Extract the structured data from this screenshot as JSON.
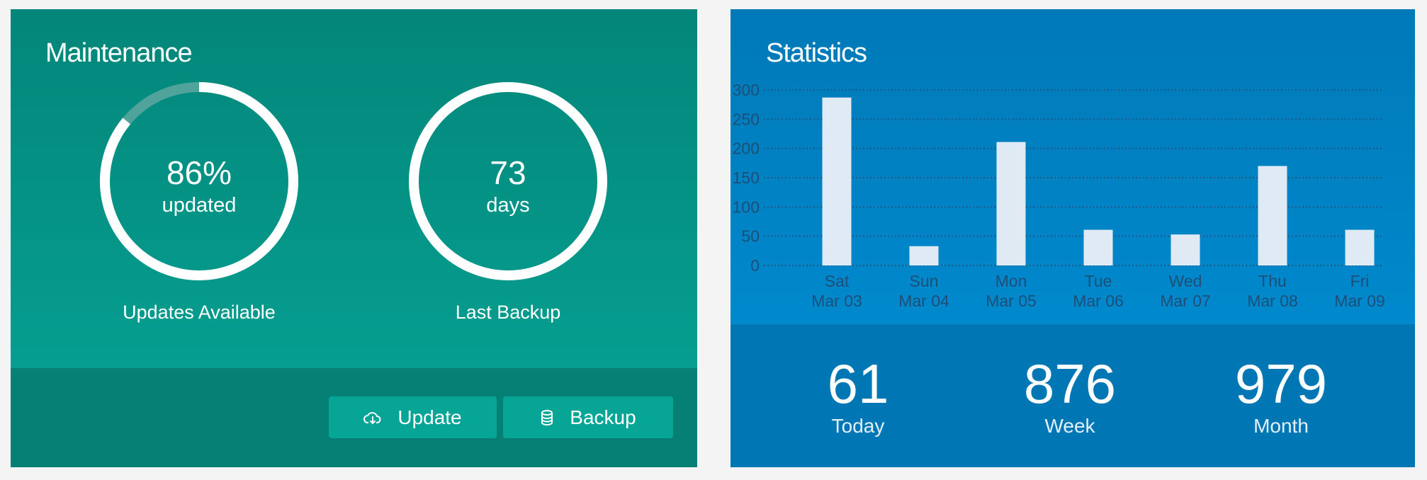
{
  "maintenance": {
    "title": "Maintenance",
    "updates": {
      "value": "86%",
      "unit": "updated",
      "label": "Updates Available",
      "percent": 86
    },
    "backup": {
      "value": "73",
      "unit": "days",
      "label": "Last Backup",
      "percent": 100
    },
    "buttons": [
      {
        "label": "Update",
        "icon": "cloud-download-icon"
      },
      {
        "label": "Backup",
        "icon": "database-icon"
      }
    ],
    "colors": {
      "panel": "#04867a",
      "footer": "#067f74",
      "button": "#06a596",
      "ring": "#ffffff",
      "ring_track": "#4fa39a"
    }
  },
  "statistics": {
    "title": "Statistics",
    "summary": [
      {
        "value": "61",
        "label": "Today"
      },
      {
        "value": "876",
        "label": "Week"
      },
      {
        "value": "979",
        "label": "Month"
      }
    ],
    "colors": {
      "panel": "#0079b7",
      "footer": "#0077b5",
      "bar": "#dfeaf5",
      "axis_text": "#1d4f78"
    }
  },
  "chart_data": {
    "type": "bar",
    "categories": [
      [
        "Sat",
        "Mar 03"
      ],
      [
        "Sun",
        "Mar 04"
      ],
      [
        "Mon",
        "Mar 05"
      ],
      [
        "Tue",
        "Mar 06"
      ],
      [
        "Wed",
        "Mar 07"
      ],
      [
        "Thu",
        "Mar 08"
      ],
      [
        "Fri",
        "Mar 09"
      ]
    ],
    "values": [
      287,
      33,
      211,
      61,
      53,
      170,
      61
    ],
    "yticks": [
      0,
      50,
      100,
      150,
      200,
      250,
      300
    ],
    "ylim": [
      0,
      300
    ],
    "grid": true,
    "title": "",
    "xlabel": "",
    "ylabel": ""
  }
}
